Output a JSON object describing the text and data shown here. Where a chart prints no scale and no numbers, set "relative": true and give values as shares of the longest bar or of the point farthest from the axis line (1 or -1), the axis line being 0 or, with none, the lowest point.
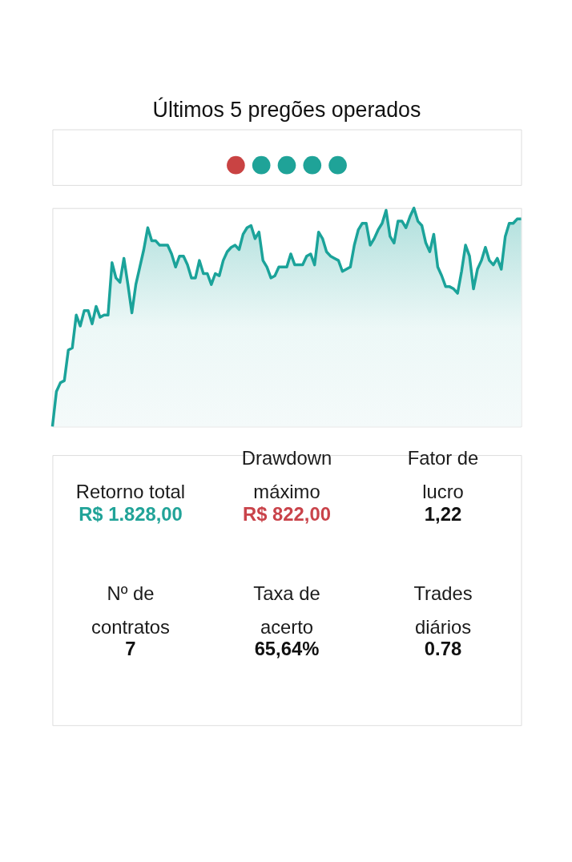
{
  "chart_data": [
    {
      "type": "other",
      "title": "Últimos 5 pregões operados",
      "categories": [
        null,
        null,
        null,
        null,
        null
      ],
      "colors": [
        "#c94343",
        "#1fa398",
        "#1fa398",
        "#1fa398",
        "#1fa398"
      ]
    },
    {
      "type": "area",
      "relative": true,
      "categories": [
        null,
        null,
        null,
        null,
        null,
        null,
        null,
        null,
        null,
        null,
        null,
        null,
        null,
        null,
        null,
        null,
        null,
        null,
        null,
        null,
        null,
        null,
        null,
        null,
        null,
        null,
        null,
        null,
        null,
        null,
        null,
        null,
        null,
        null,
        null,
        null,
        null,
        null,
        null,
        null,
        null,
        null,
        null,
        null,
        null,
        null,
        null,
        null,
        null,
        null,
        null,
        null,
        null,
        null,
        null,
        null,
        null,
        null,
        null,
        null,
        null,
        null,
        null,
        null,
        null,
        null,
        null,
        null,
        null,
        null,
        null,
        null,
        null,
        null,
        null,
        null,
        null,
        null,
        null,
        null,
        null,
        null,
        null,
        null,
        null,
        null,
        null,
        null,
        null,
        null,
        null,
        null,
        null,
        null,
        null,
        null,
        null,
        null,
        null,
        null,
        null,
        null,
        null,
        null,
        null,
        null,
        null,
        null,
        null,
        null,
        null,
        null,
        null,
        null,
        null,
        null,
        null,
        null,
        null
      ],
      "series": [
        {
          "color": "#1ba39a",
          "values": [
            0,
            0.16,
            0.2,
            0.21,
            0.35,
            0.36,
            0.51,
            0.46,
            0.53,
            0.53,
            0.47,
            0.55,
            0.5,
            0.51,
            0.51,
            0.75,
            0.68,
            0.66,
            0.77,
            0.65,
            0.52,
            0.65,
            0.73,
            0.81,
            0.91,
            0.85,
            0.85,
            0.83,
            0.83,
            0.83,
            0.79,
            0.73,
            0.78,
            0.78,
            0.74,
            0.68,
            0.68,
            0.76,
            0.7,
            0.7,
            0.65,
            0.7,
            0.69,
            0.76,
            0.8,
            0.82,
            0.83,
            0.81,
            0.88,
            0.91,
            0.92,
            0.86,
            0.89,
            0.76,
            0.73,
            0.68,
            0.69,
            0.73,
            0.73,
            0.73,
            0.79,
            0.74,
            0.74,
            0.74,
            0.78,
            0.79,
            0.74,
            0.89,
            0.86,
            0.8,
            0.78,
            0.77,
            0.76,
            0.71,
            0.72,
            0.73,
            0.83,
            0.9,
            0.93,
            0.93,
            0.83,
            0.86,
            0.9,
            0.93,
            0.99,
            0.87,
            0.84,
            0.94,
            0.94,
            0.91,
            0.96,
            1.0,
            0.94,
            0.92,
            0.84,
            0.8,
            0.88,
            0.73,
            0.69,
            0.64,
            0.64,
            0.63,
            0.61,
            0.71,
            0.83,
            0.78,
            0.63,
            0.72,
            0.76,
            0.82,
            0.76,
            0.74,
            0.77,
            0.72,
            0.87,
            0.93,
            0.93,
            0.95,
            0.95
          ]
        }
      ]
    },
    {
      "type": "other",
      "categories": [
        "Retorno total",
        "Drawdown máximo",
        "Fator de lucro",
        "Nº de contratos",
        "Taxa de acerto",
        "Trades diários"
      ],
      "value_labels": [
        "R$ 1.828,00",
        "R$ 822,00",
        "1,22",
        "7",
        "65,64%",
        "0.78"
      ],
      "colors": [
        "#21a398",
        "#c9434a",
        "#111111",
        "#111111",
        "#111111",
        "#111111"
      ]
    }
  ]
}
